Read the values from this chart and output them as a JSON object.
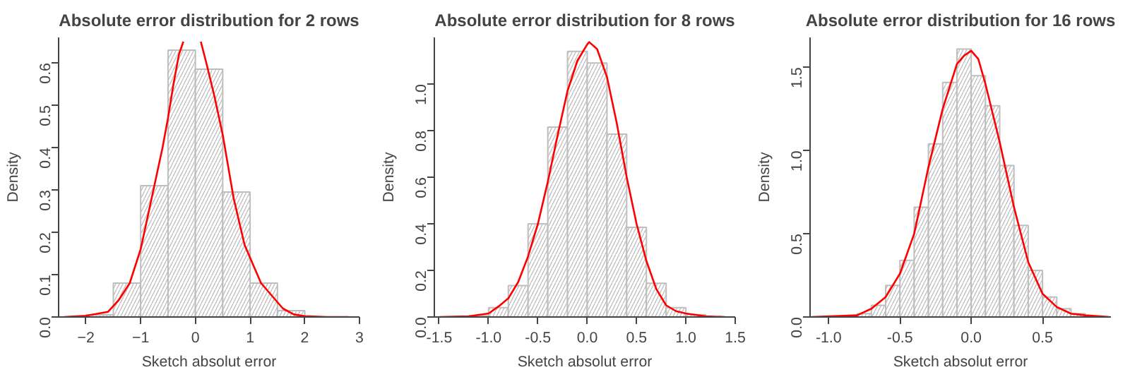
{
  "chart_data": [
    {
      "type": "histogram",
      "title": "Absolute error distribution for 2 rows",
      "xlabel": "Sketch absolut error",
      "ylabel": "Density",
      "xlim": [
        -2.5,
        3.0
      ],
      "ylim": [
        0,
        0.66
      ],
      "xticks": [
        -2,
        -1,
        0,
        1,
        2,
        3
      ],
      "yticks": [
        {
          "value": 0,
          "label": "0.0"
        },
        {
          "value": 0.1,
          "label": "0.1"
        },
        {
          "value": 0.2,
          "label": "0.2"
        },
        {
          "value": 0.3,
          "label": "0.3"
        },
        {
          "value": 0.4,
          "label": "0.4"
        },
        {
          "value": 0.5,
          "label": "0.5"
        },
        {
          "value": 0.6,
          "label": "0.6"
        }
      ],
      "grid": false,
      "series": [
        {
          "color": "#bebebe",
          "bins": [
            -2,
            -1.5,
            -1,
            -0.5,
            0,
            0.5,
            1,
            1.5,
            2
          ],
          "values": [
            0.005,
            0.08,
            0.31,
            0.63,
            0.585,
            0.295,
            0.08,
            0.015
          ]
        },
        {
          "type": "line",
          "color": "#ff0000",
          "x": [
            -2.4,
            -2.0,
            -1.6,
            -1.4,
            -1.2,
            -1.0,
            -0.8,
            -0.6,
            -0.5,
            -0.4,
            -0.3,
            -0.22,
            0.0,
            0.1,
            0.2,
            0.35,
            0.5,
            0.7,
            0.9,
            1.0,
            1.2,
            1.4,
            1.6,
            1.8,
            2.0,
            2.4,
            2.8
          ],
          "values": [
            0,
            0.003,
            0.012,
            0.04,
            0.08,
            0.16,
            0.28,
            0.4,
            0.47,
            0.55,
            0.62,
            0.65,
            null,
            0.65,
            0.6,
            0.52,
            0.43,
            0.28,
            0.17,
            0.14,
            0.08,
            0.05,
            0.02,
            0.006,
            0.002,
            0,
            0
          ]
        }
      ]
    },
    {
      "type": "histogram",
      "title": "Absolute error distribution for 8 rows",
      "xlabel": "Sketch absolut error",
      "ylabel": "Density",
      "xlim": [
        -1.55,
        1.5
      ],
      "ylim": [
        0,
        1.2
      ],
      "xticks": [
        {
          "value": -1.5,
          "label": "-1.5"
        },
        {
          "value": -1,
          "label": "-1.0"
        },
        {
          "value": -0.5,
          "label": "-0.5"
        },
        {
          "value": 0,
          "label": "0.0"
        },
        {
          "value": 0.5,
          "label": "0.5"
        },
        {
          "value": 1,
          "label": "1.0"
        },
        {
          "value": 1.5,
          "label": "1.5"
        }
      ],
      "yticks": [
        {
          "value": 0,
          "label": "0.0"
        },
        {
          "value": 0.2,
          "label": "0.2"
        },
        {
          "value": 0.4,
          "label": "0.4"
        },
        {
          "value": 0.6,
          "label": "0.6"
        },
        {
          "value": 0.8,
          "label": "0.8"
        },
        {
          "value": 1,
          "label": "1.0"
        }
      ],
      "grid": false,
      "series": [
        {
          "color": "#bebebe",
          "bins": [
            -1.2,
            -1.0,
            -0.8,
            -0.6,
            -0.4,
            -0.2,
            0,
            0.2,
            0.4,
            0.6,
            0.8,
            1.0,
            1.2
          ],
          "values": [
            0.005,
            0.04,
            0.135,
            0.4,
            0.815,
            1.14,
            1.09,
            0.785,
            0.385,
            0.145,
            0.04,
            0.01
          ]
        },
        {
          "type": "line",
          "color": "#ff0000",
          "x": [
            -1.5,
            -1.2,
            -1.0,
            -0.9,
            -0.8,
            -0.7,
            -0.6,
            -0.5,
            -0.4,
            -0.3,
            -0.2,
            -0.1,
            0.0,
            0.02,
            0.1,
            0.2,
            0.3,
            0.4,
            0.5,
            0.6,
            0.7,
            0.8,
            0.9,
            1.0,
            1.2,
            1.4
          ],
          "values": [
            0,
            0.003,
            0.015,
            0.045,
            0.08,
            0.15,
            0.26,
            0.4,
            0.58,
            0.78,
            0.97,
            1.1,
            1.17,
            1.18,
            1.15,
            1.03,
            0.83,
            0.6,
            0.4,
            0.24,
            0.12,
            0.05,
            0.025,
            0.015,
            0.003,
            0
          ]
        }
      ]
    },
    {
      "type": "histogram",
      "title": "Absolute error distribution for 16 rows",
      "xlabel": "Sketch absolut error",
      "ylabel": "Density",
      "xlim": [
        -1.13,
        0.98
      ],
      "ylim": [
        0,
        1.68
      ],
      "xticks": [
        {
          "value": -1,
          "label": "-1.0"
        },
        {
          "value": -0.5,
          "label": "-0.5"
        },
        {
          "value": 0,
          "label": "0.0"
        },
        0.5
      ],
      "yticks": [
        {
          "value": 0,
          "label": "0.0"
        },
        0.5,
        {
          "value": 1,
          "label": "1.0"
        },
        1.5
      ],
      "grid": false,
      "series": [
        {
          "color": "#bebebe",
          "bins": [
            -0.8,
            -0.7,
            -0.6,
            -0.5,
            -0.4,
            -0.3,
            -0.2,
            -0.1,
            0,
            0.1,
            0.2,
            0.3,
            0.4,
            0.5,
            0.6,
            0.7,
            0.8
          ],
          "values": [
            0.02,
            0.07,
            0.19,
            0.34,
            0.66,
            1.04,
            1.41,
            1.61,
            1.45,
            1.27,
            0.91,
            0.55,
            0.28,
            0.12,
            0.05,
            0.02
          ]
        },
        {
          "type": "line",
          "color": "#ff0000",
          "x": [
            -1.12,
            -0.8,
            -0.7,
            -0.6,
            -0.5,
            -0.4,
            -0.3,
            -0.2,
            -0.1,
            -0.05,
            0,
            0.05,
            0.1,
            0.2,
            0.3,
            0.4,
            0.5,
            0.6,
            0.7,
            0.8,
            0.97
          ],
          "values": [
            0,
            0.01,
            0.05,
            0.12,
            0.26,
            0.5,
            0.9,
            1.25,
            1.52,
            1.57,
            1.6,
            1.55,
            1.4,
            1.05,
            0.66,
            0.33,
            0.14,
            0.06,
            0.02,
            0.01,
            0
          ]
        }
      ]
    }
  ]
}
